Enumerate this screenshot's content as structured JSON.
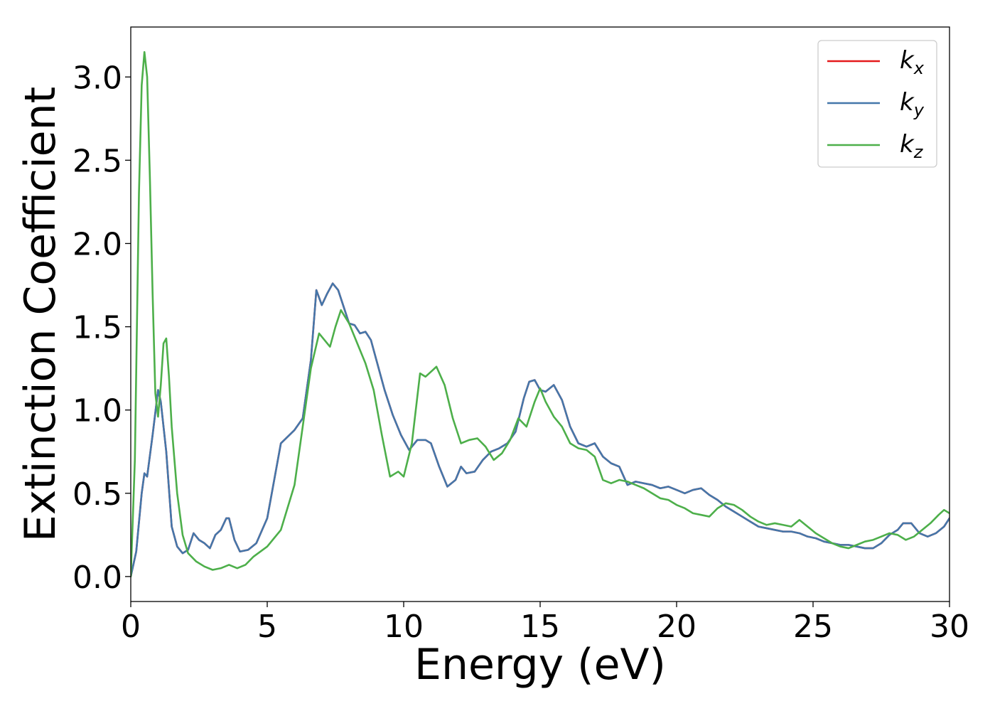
{
  "chart_data": {
    "type": "line",
    "title": "",
    "xlabel": "Energy (eV)",
    "ylabel": "Extinction Coefficient",
    "xlim": [
      0,
      30
    ],
    "ylim": [
      -0.15,
      3.3
    ],
    "xticks": [
      0,
      5,
      10,
      15,
      20,
      25,
      30
    ],
    "xtick_labels": [
      "0",
      "5",
      "10",
      "15",
      "20",
      "25",
      "30"
    ],
    "yticks": [
      0.0,
      0.5,
      1.0,
      1.5,
      2.0,
      2.5,
      3.0
    ],
    "ytick_labels": [
      "0.0",
      "0.5",
      "1.0",
      "1.5",
      "2.0",
      "2.5",
      "3.0"
    ],
    "grid": false,
    "legend_position": "top-right",
    "series": [
      {
        "name": "k_x",
        "label_base": "k",
        "label_sub": "x",
        "color": "#e41a1c",
        "x": [
          0,
          0.2,
          0.4,
          0.5,
          0.6,
          0.8,
          1.0,
          1.1,
          1.3,
          1.5,
          1.7,
          1.9,
          2.1,
          2.3,
          2.5,
          2.7,
          2.9,
          3.1,
          3.3,
          3.5,
          3.6,
          3.8,
          4.0,
          4.3,
          4.6,
          5.0,
          5.5,
          6.0,
          6.3,
          6.6,
          6.8,
          7.0,
          7.2,
          7.4,
          7.6,
          7.8,
          8.0,
          8.2,
          8.4,
          8.6,
          8.8,
          9.0,
          9.3,
          9.6,
          9.9,
          10.2,
          10.5,
          10.8,
          11.0,
          11.3,
          11.6,
          11.9,
          12.1,
          12.3,
          12.6,
          12.9,
          13.2,
          13.5,
          13.8,
          14.1,
          14.4,
          14.6,
          14.8,
          15.0,
          15.2,
          15.5,
          15.8,
          16.1,
          16.4,
          16.7,
          17.0,
          17.3,
          17.6,
          17.9,
          18.2,
          18.5,
          18.8,
          19.1,
          19.4,
          19.7,
          20.0,
          20.3,
          20.6,
          20.9,
          21.2,
          21.5,
          21.8,
          22.1,
          22.4,
          22.7,
          23.0,
          23.3,
          23.6,
          23.9,
          24.2,
          24.5,
          24.8,
          25.1,
          25.4,
          25.7,
          26.0,
          26.3,
          26.6,
          26.9,
          27.2,
          27.5,
          27.8,
          28.1,
          28.3,
          28.6,
          28.9,
          29.2,
          29.5,
          29.8,
          30.0
        ],
        "values": [
          0.0,
          0.15,
          0.5,
          0.62,
          0.6,
          0.85,
          1.12,
          1.05,
          0.75,
          0.3,
          0.18,
          0.14,
          0.16,
          0.26,
          0.22,
          0.2,
          0.17,
          0.25,
          0.28,
          0.35,
          0.35,
          0.22,
          0.15,
          0.16,
          0.2,
          0.35,
          0.8,
          0.88,
          0.95,
          1.3,
          1.72,
          1.63,
          1.7,
          1.76,
          1.72,
          1.62,
          1.52,
          1.51,
          1.46,
          1.47,
          1.42,
          1.3,
          1.12,
          0.97,
          0.85,
          0.76,
          0.82,
          0.82,
          0.8,
          0.66,
          0.54,
          0.58,
          0.66,
          0.62,
          0.63,
          0.7,
          0.75,
          0.77,
          0.8,
          0.87,
          1.07,
          1.17,
          1.18,
          1.12,
          1.11,
          1.15,
          1.06,
          0.9,
          0.8,
          0.78,
          0.8,
          0.72,
          0.68,
          0.66,
          0.55,
          0.57,
          0.56,
          0.55,
          0.53,
          0.54,
          0.52,
          0.5,
          0.52,
          0.53,
          0.49,
          0.46,
          0.42,
          0.39,
          0.36,
          0.33,
          0.3,
          0.29,
          0.28,
          0.27,
          0.27,
          0.26,
          0.24,
          0.23,
          0.21,
          0.2,
          0.19,
          0.19,
          0.18,
          0.17,
          0.17,
          0.2,
          0.25,
          0.28,
          0.32,
          0.32,
          0.26,
          0.24,
          0.26,
          0.3,
          0.35
        ]
      },
      {
        "name": "k_y",
        "label_base": "k",
        "label_sub": "y",
        "color": "#4477aa",
        "x": [
          0,
          0.2,
          0.4,
          0.5,
          0.6,
          0.8,
          1.0,
          1.1,
          1.3,
          1.5,
          1.7,
          1.9,
          2.1,
          2.3,
          2.5,
          2.7,
          2.9,
          3.1,
          3.3,
          3.5,
          3.6,
          3.8,
          4.0,
          4.3,
          4.6,
          5.0,
          5.5,
          6.0,
          6.3,
          6.6,
          6.8,
          7.0,
          7.2,
          7.4,
          7.6,
          7.8,
          8.0,
          8.2,
          8.4,
          8.6,
          8.8,
          9.0,
          9.3,
          9.6,
          9.9,
          10.2,
          10.5,
          10.8,
          11.0,
          11.3,
          11.6,
          11.9,
          12.1,
          12.3,
          12.6,
          12.9,
          13.2,
          13.5,
          13.8,
          14.1,
          14.4,
          14.6,
          14.8,
          15.0,
          15.2,
          15.5,
          15.8,
          16.1,
          16.4,
          16.7,
          17.0,
          17.3,
          17.6,
          17.9,
          18.2,
          18.5,
          18.8,
          19.1,
          19.4,
          19.7,
          20.0,
          20.3,
          20.6,
          20.9,
          21.2,
          21.5,
          21.8,
          22.1,
          22.4,
          22.7,
          23.0,
          23.3,
          23.6,
          23.9,
          24.2,
          24.5,
          24.8,
          25.1,
          25.4,
          25.7,
          26.0,
          26.3,
          26.6,
          26.9,
          27.2,
          27.5,
          27.8,
          28.1,
          28.3,
          28.6,
          28.9,
          29.2,
          29.5,
          29.8,
          30.0
        ],
        "values": [
          0.0,
          0.15,
          0.5,
          0.62,
          0.6,
          0.85,
          1.12,
          1.05,
          0.75,
          0.3,
          0.18,
          0.14,
          0.16,
          0.26,
          0.22,
          0.2,
          0.17,
          0.25,
          0.28,
          0.35,
          0.35,
          0.22,
          0.15,
          0.16,
          0.2,
          0.35,
          0.8,
          0.88,
          0.95,
          1.3,
          1.72,
          1.63,
          1.7,
          1.76,
          1.72,
          1.62,
          1.52,
          1.51,
          1.46,
          1.47,
          1.42,
          1.3,
          1.12,
          0.97,
          0.85,
          0.76,
          0.82,
          0.82,
          0.8,
          0.66,
          0.54,
          0.58,
          0.66,
          0.62,
          0.63,
          0.7,
          0.75,
          0.77,
          0.8,
          0.87,
          1.07,
          1.17,
          1.18,
          1.12,
          1.11,
          1.15,
          1.06,
          0.9,
          0.8,
          0.78,
          0.8,
          0.72,
          0.68,
          0.66,
          0.55,
          0.57,
          0.56,
          0.55,
          0.53,
          0.54,
          0.52,
          0.5,
          0.52,
          0.53,
          0.49,
          0.46,
          0.42,
          0.39,
          0.36,
          0.33,
          0.3,
          0.29,
          0.28,
          0.27,
          0.27,
          0.26,
          0.24,
          0.23,
          0.21,
          0.2,
          0.19,
          0.19,
          0.18,
          0.17,
          0.17,
          0.2,
          0.25,
          0.28,
          0.32,
          0.32,
          0.26,
          0.24,
          0.26,
          0.3,
          0.35
        ]
      },
      {
        "name": "k_z",
        "label_base": "k",
        "label_sub": "z",
        "color": "#4daf4a",
        "x": [
          0,
          0.15,
          0.3,
          0.4,
          0.5,
          0.6,
          0.7,
          0.8,
          0.9,
          1.0,
          1.1,
          1.2,
          1.3,
          1.4,
          1.5,
          1.7,
          1.9,
          2.1,
          2.4,
          2.7,
          3.0,
          3.3,
          3.6,
          3.9,
          4.2,
          4.5,
          5.0,
          5.5,
          6.0,
          6.3,
          6.6,
          6.9,
          7.1,
          7.3,
          7.5,
          7.7,
          8.0,
          8.3,
          8.6,
          8.9,
          9.2,
          9.5,
          9.8,
          10.0,
          10.3,
          10.6,
          10.8,
          11.0,
          11.2,
          11.5,
          11.8,
          12.1,
          12.4,
          12.7,
          13.0,
          13.3,
          13.6,
          13.9,
          14.2,
          14.5,
          14.8,
          15.0,
          15.2,
          15.5,
          15.8,
          16.1,
          16.4,
          16.7,
          17.0,
          17.3,
          17.6,
          17.9,
          18.2,
          18.5,
          18.8,
          19.1,
          19.4,
          19.7,
          20.0,
          20.3,
          20.6,
          20.9,
          21.2,
          21.5,
          21.8,
          22.1,
          22.4,
          22.7,
          23.0,
          23.3,
          23.6,
          23.9,
          24.2,
          24.5,
          24.8,
          25.1,
          25.4,
          25.7,
          26.0,
          26.3,
          26.6,
          26.9,
          27.2,
          27.5,
          27.8,
          28.1,
          28.4,
          28.7,
          29.0,
          29.3,
          29.6,
          29.8,
          30.0
        ],
        "values": [
          0.0,
          0.7,
          2.3,
          2.95,
          3.15,
          3.0,
          2.4,
          1.7,
          1.1,
          0.96,
          1.15,
          1.4,
          1.43,
          1.2,
          0.9,
          0.5,
          0.25,
          0.14,
          0.09,
          0.06,
          0.04,
          0.05,
          0.07,
          0.05,
          0.07,
          0.12,
          0.18,
          0.28,
          0.55,
          0.9,
          1.25,
          1.46,
          1.42,
          1.38,
          1.5,
          1.6,
          1.52,
          1.4,
          1.28,
          1.12,
          0.85,
          0.6,
          0.63,
          0.6,
          0.8,
          1.22,
          1.2,
          1.23,
          1.26,
          1.15,
          0.95,
          0.8,
          0.82,
          0.83,
          0.78,
          0.7,
          0.74,
          0.82,
          0.95,
          0.9,
          1.05,
          1.13,
          1.05,
          0.96,
          0.9,
          0.8,
          0.77,
          0.76,
          0.72,
          0.58,
          0.56,
          0.58,
          0.57,
          0.55,
          0.53,
          0.5,
          0.47,
          0.46,
          0.43,
          0.41,
          0.38,
          0.37,
          0.36,
          0.41,
          0.44,
          0.43,
          0.4,
          0.36,
          0.33,
          0.31,
          0.32,
          0.31,
          0.3,
          0.34,
          0.3,
          0.26,
          0.23,
          0.2,
          0.18,
          0.17,
          0.19,
          0.21,
          0.22,
          0.24,
          0.26,
          0.25,
          0.22,
          0.24,
          0.28,
          0.32,
          0.37,
          0.4,
          0.38
        ]
      }
    ]
  }
}
